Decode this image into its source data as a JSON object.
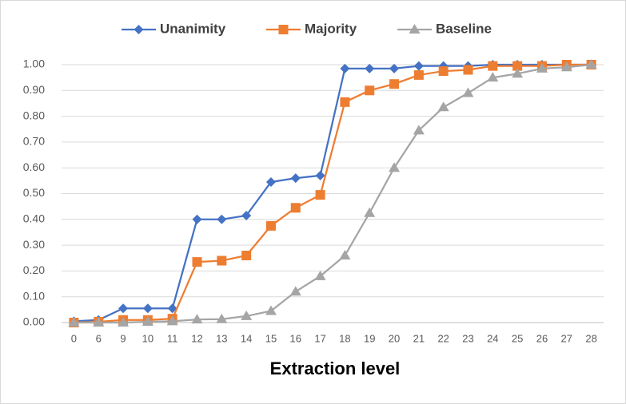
{
  "chart_data": {
    "type": "line",
    "x_label": "Extraction level",
    "categories": [
      "0",
      "6",
      "9",
      "10",
      "11",
      "12",
      "13",
      "14",
      "15",
      "16",
      "17",
      "18",
      "19",
      "20",
      "21",
      "22",
      "23",
      "24",
      "25",
      "26",
      "27",
      "28"
    ],
    "series": [
      {
        "name": "Unanimity",
        "color": "#4472c4",
        "marker": "diamond",
        "values": [
          0.005,
          0.01,
          0.055,
          0.055,
          0.055,
          0.4,
          0.4,
          0.415,
          0.545,
          0.56,
          0.57,
          0.985,
          0.985,
          0.985,
          0.995,
          0.995,
          0.995,
          1.0,
          1.0,
          1.0,
          1.0,
          1.0
        ]
      },
      {
        "name": "Majority",
        "color": "#ed7d31",
        "marker": "square",
        "values": [
          0,
          0.003,
          0.01,
          0.01,
          0.015,
          0.235,
          0.24,
          0.26,
          0.375,
          0.445,
          0.495,
          0.855,
          0.9,
          0.925,
          0.96,
          0.975,
          0.98,
          0.995,
          0.995,
          0.995,
          1.0,
          1.0
        ]
      },
      {
        "name": "Baseline",
        "color": "#a5a5a5",
        "marker": "triangle",
        "values": [
          0,
          0,
          0,
          0.003,
          0.005,
          0.012,
          0.013,
          0.025,
          0.045,
          0.12,
          0.18,
          0.26,
          0.425,
          0.6,
          0.745,
          0.835,
          0.89,
          0.95,
          0.965,
          0.985,
          0.99,
          1.0
        ]
      }
    ],
    "ylim": [
      0,
      1
    ],
    "yticks": [
      {
        "value": 0,
        "label": "0.00"
      },
      {
        "value": 0.1,
        "label": "0.10"
      },
      {
        "value": 0.2,
        "label": "0.20"
      },
      {
        "value": 0.3,
        "label": "0.30"
      },
      {
        "value": 0.4,
        "label": "0.40"
      },
      {
        "value": 0.5,
        "label": "0.50"
      },
      {
        "value": 0.6,
        "label": "0.60"
      },
      {
        "value": 0.7,
        "label": "0.70"
      },
      {
        "value": 0.8,
        "label": "0.80"
      },
      {
        "value": 0.9,
        "label": "0.90"
      },
      {
        "value": 1,
        "label": "1.00"
      }
    ],
    "grid": true,
    "legend": "top"
  }
}
